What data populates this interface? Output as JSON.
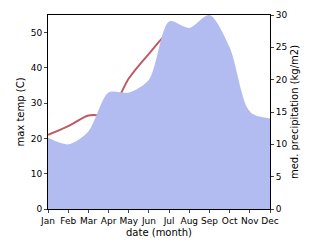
{
  "chart_data": {
    "type": "line",
    "x_label": "date (month)",
    "y_label": "max temp (C)",
    "y2_label": "med. precipitation (kg/m2)",
    "categories": [
      "Jan",
      "Feb",
      "Mar",
      "Apr",
      "May",
      "Jun",
      "Jul",
      "Aug",
      "Sep",
      "Oct",
      "Nov",
      "Dec"
    ],
    "series": [
      {
        "name": "med. precipitation",
        "type": "area",
        "axis": "y2",
        "color": "#b3bcf0",
        "values": [
          11,
          10,
          12,
          18,
          18,
          20,
          29,
          28,
          30,
          25,
          15,
          14
        ]
      },
      {
        "name": "max temp",
        "type": "line",
        "color": "#c05a62",
        "values": [
          21,
          23.5,
          26.5,
          27,
          37,
          44,
          50,
          50,
          43,
          36,
          27,
          22
        ]
      }
    ],
    "ylim": [
      0,
      55
    ],
    "yticks": [
      0,
      10,
      20,
      30,
      40,
      50
    ],
    "y2lim": [
      0,
      30
    ],
    "y2ticks": [
      0,
      5,
      10,
      15,
      20,
      25,
      30
    ],
    "grid": false
  }
}
